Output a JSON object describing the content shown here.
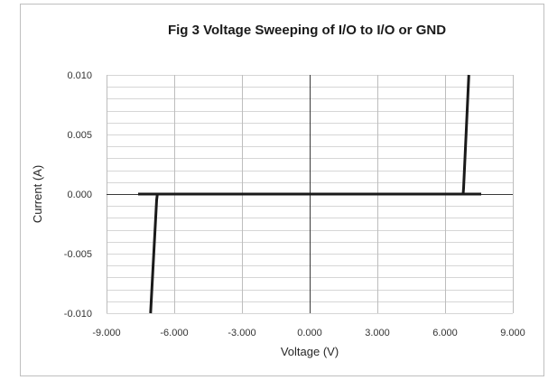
{
  "chart_data": {
    "type": "line",
    "title": "Fig 3 Voltage Sweeping of I/O to I/O or GND",
    "xlabel": "Voltage (V)",
    "ylabel": "Current (A)",
    "xlim": [
      -9,
      9
    ],
    "ylim": [
      -0.01,
      0.01
    ],
    "x_ticks": [
      {
        "value": -9,
        "label": "-9.000"
      },
      {
        "value": -6,
        "label": "-6.000"
      },
      {
        "value": -3,
        "label": "-3.000"
      },
      {
        "value": 0,
        "label": "0.000"
      },
      {
        "value": 3,
        "label": "3.000"
      },
      {
        "value": 6,
        "label": "6.000"
      },
      {
        "value": 9,
        "label": "9.000"
      }
    ],
    "y_ticks": [
      {
        "value": 0.01,
        "label": "0.010"
      },
      {
        "value": 0.005,
        "label": "0.005"
      },
      {
        "value": 0,
        "label": "0.000"
      },
      {
        "value": -0.005,
        "label": "-0.005"
      },
      {
        "value": -0.01,
        "label": "-0.010"
      }
    ],
    "grid": {
      "major_x_step": 3,
      "minor_y_step": 0.001
    },
    "series": [
      {
        "x": [
          -7.6,
          7.6
        ],
        "y": [
          0,
          0
        ]
      },
      {
        "x": [
          6.8,
          6.82,
          7.05
        ],
        "y": [
          0,
          0.0005,
          0.01
        ]
      },
      {
        "x": [
          -6.75,
          -6.78,
          -7.05
        ],
        "y": [
          0,
          -0.0005,
          -0.01
        ]
      }
    ],
    "colors": {
      "line": "#1a1a1a",
      "axis": "#3a3a3a",
      "major_grid": "#bdbdbd",
      "minor_grid": "#d6d6d6",
      "frame": "#bfbfbf",
      "background": "#ffffff"
    }
  }
}
